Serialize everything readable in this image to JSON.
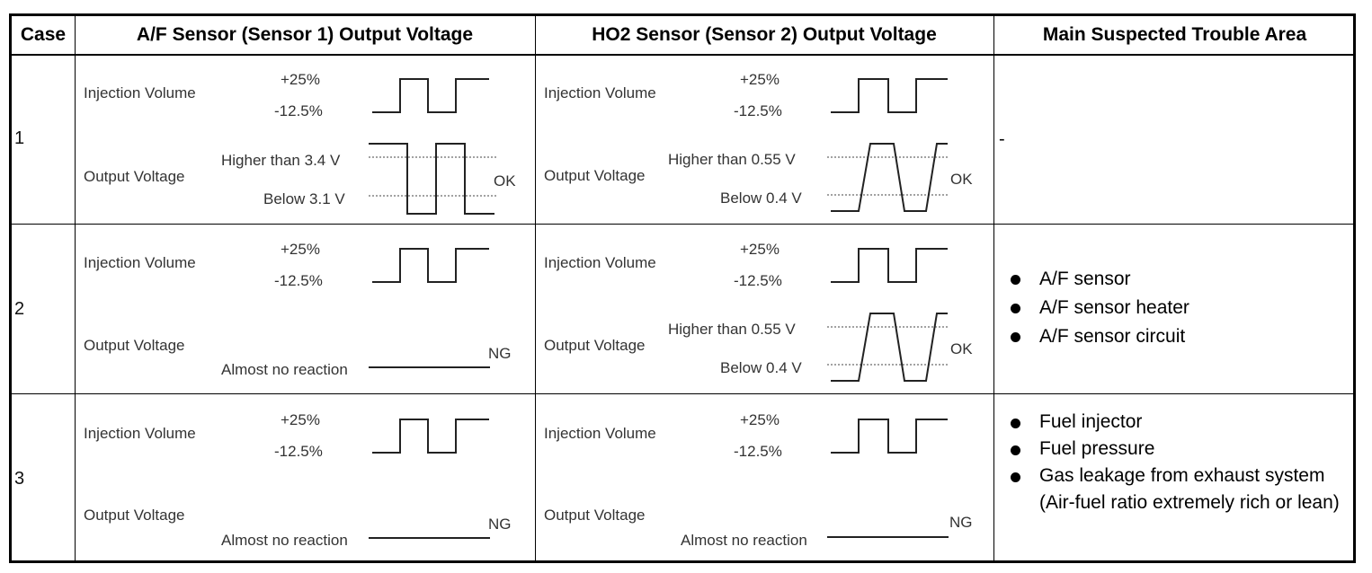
{
  "headers": {
    "case": "Case",
    "af": "A/F Sensor (Sensor 1) Output Voltage",
    "ho2": "HO2 Sensor (Sensor 2) Output Voltage",
    "trouble": "Main Suspected Trouble Area"
  },
  "labels": {
    "injection_volume": "Injection Volume",
    "output_voltage": "Output Voltage",
    "plus25": "+25%",
    "minus125": "-12.5%",
    "af_high": "Higher than 3.4 V",
    "af_low": "Below 3.1 V",
    "ho2_high": "Higher than 0.55 V",
    "ho2_low": "Below 0.4 V",
    "almost_no_reaction": "Almost no reaction",
    "ok": "OK",
    "ng": "NG"
  },
  "rows": [
    {
      "case": "1",
      "trouble_text": "-",
      "trouble_items": []
    },
    {
      "case": "2",
      "trouble_text": "",
      "trouble_items": [
        "A/F sensor",
        "A/F sensor heater",
        "A/F sensor circuit"
      ]
    },
    {
      "case": "3",
      "trouble_text": "",
      "trouble_items": [
        "Fuel injector",
        "Fuel pressure",
        "Gas leakage from exhaust system (Air-fuel ratio extremely rich or lean)"
      ]
    }
  ],
  "results": {
    "row1_af": "OK",
    "row1_ho2": "OK",
    "row2_af": "NG",
    "row2_ho2": "OK",
    "row3_af": "NG",
    "row3_ho2": "NG"
  }
}
